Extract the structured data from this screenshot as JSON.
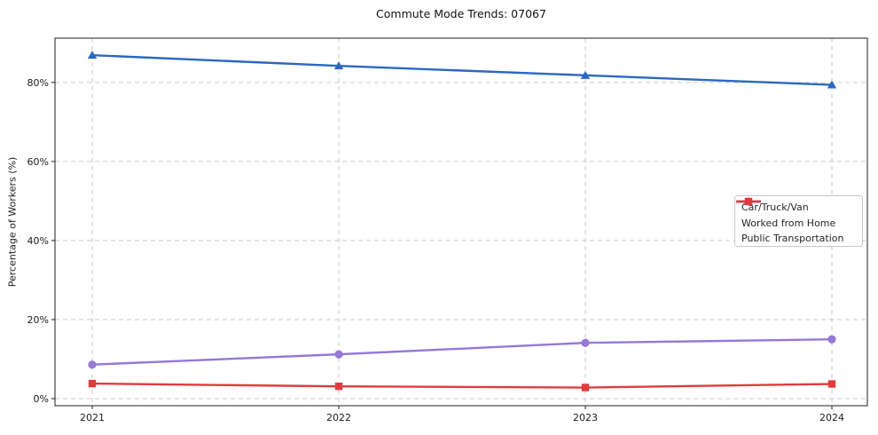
{
  "page_title": "Commute Mode Trends: 07067",
  "chart_data": {
    "type": "line",
    "title": "Commute Mode Trends: 07067",
    "xlabel": "",
    "ylabel": "Percentage of Workers (%)",
    "categories": [
      "2021",
      "2022",
      "2023",
      "2024"
    ],
    "y_ticks": [
      0,
      20,
      40,
      60,
      80
    ],
    "y_tick_labels": [
      "0%",
      "20%",
      "40%",
      "60%",
      "80%"
    ],
    "ylim": [
      -1.8,
      91.2
    ],
    "grid": true,
    "grid_style": "dashed",
    "legend_position": "center-right",
    "series": [
      {
        "name": "Car/Truck/Van",
        "marker": "triangle",
        "color": "#2c67c2",
        "values": [
          86.9,
          84.2,
          81.8,
          79.4
        ]
      },
      {
        "name": "Worked from Home",
        "marker": "circle",
        "color": "#9678d8",
        "values": [
          8.6,
          11.2,
          14.1,
          15.0
        ]
      },
      {
        "name": "Public Transportation",
        "marker": "square",
        "color": "#e03b3c",
        "values": [
          3.8,
          3.1,
          2.8,
          3.7
        ]
      }
    ]
  },
  "colors": {
    "background": "#ffffff",
    "spine": "#1f1f1f",
    "grid": "#c9c9c9",
    "tick_text": "#1c1c1c",
    "legend_border": "#c9c9c9"
  }
}
